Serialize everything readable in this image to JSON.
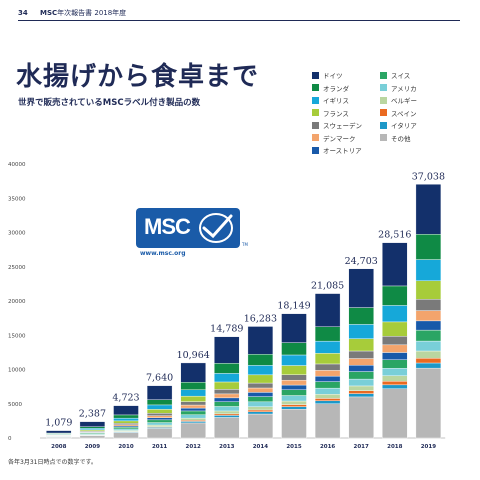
{
  "header": {
    "page_number": "34",
    "brand": "MSC",
    "report": "年次報告書 2018年度"
  },
  "logo": {
    "text": "MSC",
    "url": "www.msc.org",
    "tm": "TM"
  },
  "footnote": "各年3月31日時点での数字です。",
  "colors": {
    "ドイツ": "#13306b",
    "オランダ": "#0f8a45",
    "イギリス": "#16a8d9",
    "フランス": "#a7cc3a",
    "スウェーデン": "#7a7a7a",
    "デンマーク": "#f3a46c",
    "オーストリア": "#1859a9",
    "スイス": "#2aa564",
    "アメリカ": "#79cfd8",
    "ベルギー": "#bad6a0",
    "スペイン": "#ea6a21",
    "イタリア": "#1d98c8",
    "その他": "#b7b7b7"
  },
  "chart_data": {
    "type": "bar",
    "stacked": true,
    "title": "水揚げから食卓まで",
    "subtitle": "世界で販売されているMSCラベル付き製品の数",
    "xlabel": "",
    "ylabel": "",
    "categories": [
      "2008",
      "2009",
      "2010",
      "2011",
      "2012",
      "2013",
      "2014",
      "2015",
      "2016",
      "2017",
      "2018",
      "2019"
    ],
    "totals": [
      1079,
      2387,
      4723,
      7640,
      10964,
      14789,
      16283,
      18149,
      21085,
      24703,
      28516,
      37038
    ],
    "total_labels": [
      "1,079",
      "2,387",
      "4,723",
      "7,640",
      "10,964",
      "14,789",
      "16,283",
      "18,149",
      "21,085",
      "24,703",
      "28,516",
      "37,038"
    ],
    "ylim": [
      0,
      40000
    ],
    "yticks": [
      0,
      5000,
      10000,
      15000,
      20000,
      25000,
      30000,
      35000,
      40000
    ],
    "legend_position": "top-right",
    "grid": false,
    "series": [
      {
        "name": "その他",
        "values": [
          130,
          350,
          800,
          1400,
          2200,
          3000,
          3500,
          4200,
          5000,
          6000,
          7200,
          10200
        ]
      },
      {
        "name": "イタリア",
        "values": [
          20,
          50,
          90,
          150,
          220,
          300,
          330,
          380,
          430,
          480,
          560,
          750
        ]
      },
      {
        "name": "スペイン",
        "values": [
          15,
          30,
          60,
          110,
          160,
          220,
          260,
          300,
          350,
          420,
          520,
          700
        ]
      },
      {
        "name": "ベルギー",
        "values": [
          40,
          80,
          150,
          230,
          320,
          430,
          470,
          520,
          600,
          700,
          800,
          1050
        ]
      },
      {
        "name": "アメリカ",
        "values": [
          50,
          110,
          220,
          360,
          500,
          650,
          720,
          800,
          900,
          1000,
          1100,
          1450
        ]
      },
      {
        "name": "スイス",
        "values": [
          60,
          130,
          250,
          400,
          550,
          700,
          760,
          840,
          950,
          1100,
          1250,
          1600
        ]
      },
      {
        "name": "オーストリア",
        "values": [
          40,
          90,
          180,
          300,
          420,
          560,
          620,
          690,
          800,
          920,
          1050,
          1350
        ]
      },
      {
        "name": "デンマーク",
        "values": [
          40,
          90,
          190,
          310,
          440,
          580,
          640,
          710,
          840,
          980,
          1120,
          1500
        ]
      },
      {
        "name": "スウェーデン",
        "values": [
          50,
          110,
          220,
          360,
          500,
          660,
          720,
          800,
          940,
          1100,
          1250,
          1650
        ]
      },
      {
        "name": "フランス",
        "values": [
          80,
          170,
          340,
          560,
          800,
          1080,
          1200,
          1340,
          1550,
          1800,
          2100,
          2700
        ]
      },
      {
        "name": "イギリス",
        "values": [
          90,
          200,
          400,
          650,
          930,
          1250,
          1380,
          1540,
          1780,
          2080,
          2400,
          3100
        ]
      },
      {
        "name": "オランダ",
        "values": [
          110,
          240,
          470,
          760,
          1090,
          1470,
          1620,
          1800,
          2100,
          2460,
          2850,
          3700
        ]
      },
      {
        "name": "ドイツ",
        "values": [
          354,
          737,
          1353,
          2050,
          2834,
          3889,
          4063,
          4229,
          4845,
          5663,
          6316,
          7288
        ]
      }
    ],
    "legend": [
      {
        "name": "ドイツ"
      },
      {
        "name": "オランダ"
      },
      {
        "name": "イギリス"
      },
      {
        "name": "フランス"
      },
      {
        "name": "スウェーデン"
      },
      {
        "name": "デンマーク"
      },
      {
        "name": "オーストリア"
      },
      {
        "name": "スイス"
      },
      {
        "name": "アメリカ"
      },
      {
        "name": "ベルギー"
      },
      {
        "name": "スペイン"
      },
      {
        "name": "イタリア"
      },
      {
        "name": "その他"
      }
    ]
  }
}
